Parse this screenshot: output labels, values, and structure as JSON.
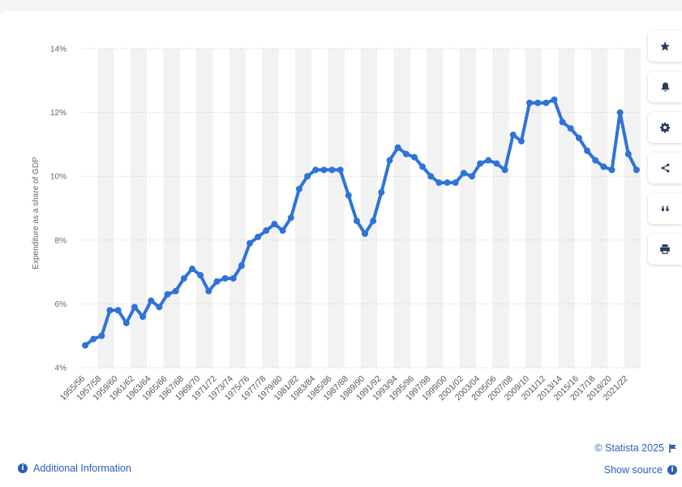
{
  "colors": {
    "line": "#2f73d9",
    "link": "#2b5fb5",
    "band": "#f2f2f2",
    "grid": "#cfcfcf"
  },
  "toolbar": [
    {
      "icon": "star-icon"
    },
    {
      "icon": "bell-icon"
    },
    {
      "icon": "gear-icon"
    },
    {
      "icon": "share-icon"
    },
    {
      "icon": "quote-icon"
    },
    {
      "icon": "print-icon"
    }
  ],
  "footer": {
    "additional_info": "Additional Information",
    "copyright": "© Statista 2025",
    "show_source": "Show source"
  },
  "chart_data": {
    "type": "line",
    "title": "",
    "xlabel": "",
    "ylabel": "Expenditure as a share of GDP",
    "ylim": [
      4,
      14
    ],
    "yticks": [
      {
        "v": 4,
        "label": "4%"
      },
      {
        "v": 6,
        "label": "6%"
      },
      {
        "v": 8,
        "label": "8%"
      },
      {
        "v": 10,
        "label": "10%"
      },
      {
        "v": 12,
        "label": "12%"
      },
      {
        "v": 14,
        "label": "14%"
      }
    ],
    "grid": true,
    "legend": "none",
    "x": [
      "1955/56",
      "1956/57",
      "1957/58",
      "1958/59",
      "1959/60",
      "1960/61",
      "1961/62",
      "1962/63",
      "1963/64",
      "1964/65",
      "1965/66",
      "1966/67",
      "1967/68",
      "1968/69",
      "1969/70",
      "1970/71",
      "1971/72",
      "1972/73",
      "1973/74",
      "1974/75",
      "1975/76",
      "1976/77",
      "1977/78",
      "1978/79",
      "1979/80",
      "1980/81",
      "1981/82",
      "1982/83",
      "1983/84",
      "1984/85",
      "1985/86",
      "1986/87",
      "1987/88",
      "1988/89",
      "1989/90",
      "1990/91",
      "1991/92",
      "1992/93",
      "1993/94",
      "1994/95",
      "1995/96",
      "1996/97",
      "1997/98",
      "1998/99",
      "1999/00",
      "2000/01",
      "2001/02",
      "2002/03",
      "2003/04",
      "2004/05",
      "2005/06",
      "2006/07",
      "2007/08",
      "2008/09",
      "2009/10",
      "2010/11",
      "2011/12",
      "2012/13",
      "2013/14",
      "2014/15",
      "2015/16",
      "2016/17",
      "2017/18",
      "2018/19",
      "2019/20",
      "2020/21",
      "2021/22",
      "2022/23"
    ],
    "shown_ticks": [
      "1955/56",
      "1957/58",
      "1959/60",
      "1961/62",
      "1963/64",
      "1965/66",
      "1967/68",
      "1969/70",
      "1971/72",
      "1973/74",
      "1975/76",
      "1977/78",
      "1979/80",
      "1981/82",
      "1983/84",
      "1985/86",
      "1987/88",
      "1989/90",
      "1991/92",
      "1993/94",
      "1995/96",
      "1997/98",
      "1999/00",
      "2001/02",
      "2003/04",
      "2005/06",
      "2007/08",
      "2009/10",
      "2011/12",
      "2013/14",
      "2015/16",
      "2017/18",
      "2019/20",
      "2021/22"
    ],
    "series": [
      {
        "values": [
          4.7,
          4.9,
          5.0,
          5.8,
          5.8,
          5.4,
          5.9,
          5.6,
          6.1,
          5.9,
          6.3,
          6.4,
          6.8,
          7.1,
          6.9,
          6.4,
          6.7,
          6.8,
          6.8,
          7.2,
          7.9,
          8.1,
          8.3,
          8.5,
          8.3,
          8.7,
          9.6,
          10.0,
          10.2,
          10.2,
          10.2,
          10.2,
          9.4,
          8.6,
          8.2,
          8.6,
          9.5,
          10.5,
          10.9,
          10.7,
          10.6,
          10.3,
          10.0,
          9.8,
          9.8,
          9.8,
          10.1,
          10.0,
          10.4,
          10.5,
          10.4,
          10.2,
          11.3,
          11.1,
          12.3,
          12.3,
          12.3,
          12.4,
          11.7,
          11.5,
          11.2,
          10.8,
          10.5,
          10.3,
          10.2,
          12.0,
          10.7,
          10.2
        ]
      }
    ]
  }
}
